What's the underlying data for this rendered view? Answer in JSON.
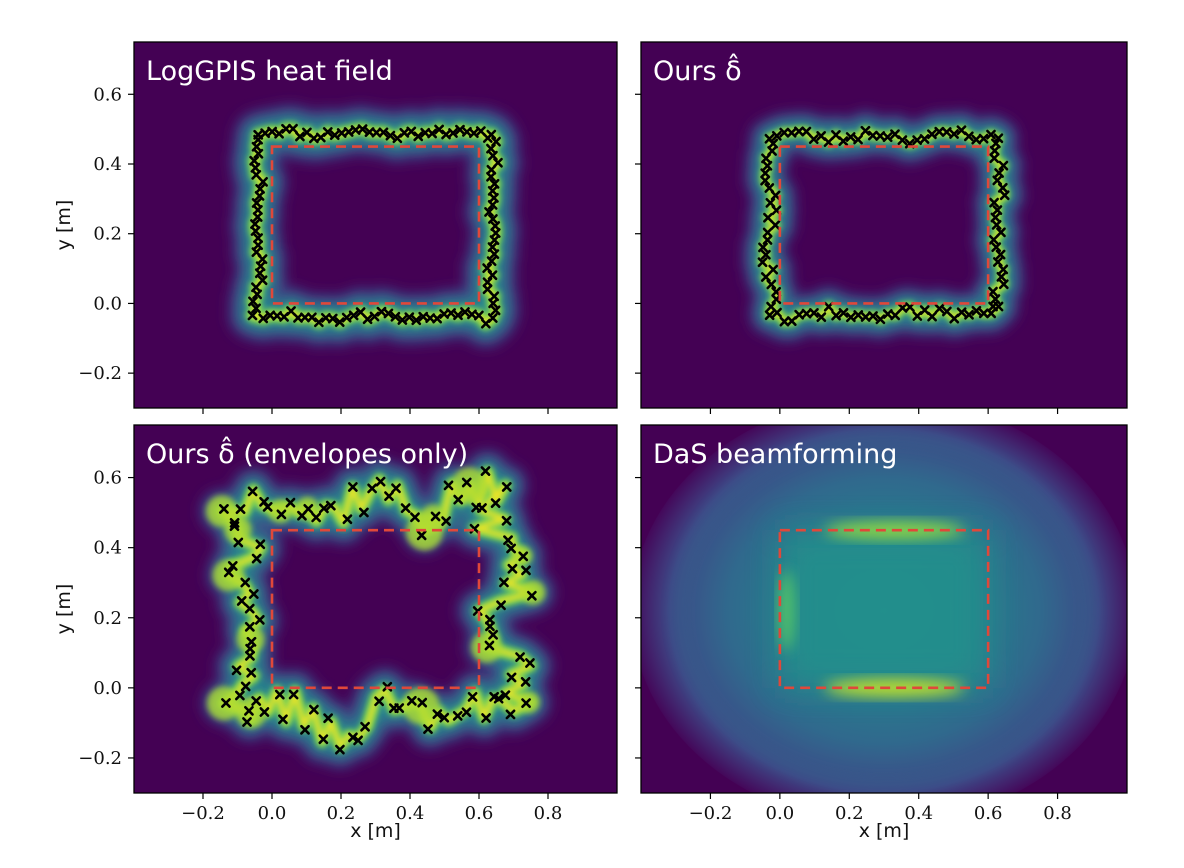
{
  "chart_data": [
    {
      "type": "heatmap",
      "title": "LogGPIS heat field",
      "xlabel": "",
      "ylabel": "y [m]",
      "xlim": [
        -0.4,
        1.0
      ],
      "ylim": [
        -0.3,
        0.75
      ],
      "xticks": [],
      "yticks": [
        "−0.2",
        "0.0",
        "0.2",
        "0.4",
        "0.6"
      ],
      "rect_outline": {
        "x": [
          0.0,
          0.6
        ],
        "y": [
          0.0,
          0.45
        ],
        "style": "red dashed"
      },
      "field": {
        "style": "sharp",
        "pad": 0.04,
        "jitter": 0.012,
        "glow": 0.055,
        "count": 120,
        "seed": 11
      },
      "markers": "black x on contour"
    },
    {
      "type": "heatmap",
      "title": "Ours δ̂",
      "xlabel": "",
      "ylabel": "",
      "xlim": [
        -0.4,
        1.0
      ],
      "ylim": [
        -0.3,
        0.75
      ],
      "xticks": [],
      "yticks": [],
      "rect_outline": {
        "x": [
          0.0,
          0.6
        ],
        "y": [
          0.0,
          0.45
        ],
        "style": "red dashed"
      },
      "field": {
        "style": "wavy",
        "pad": 0.03,
        "jitter": 0.015,
        "glow": 0.045,
        "count": 110,
        "seed": 23
      },
      "markers": "black x on contour"
    },
    {
      "type": "heatmap",
      "title": "Ours δ̂ (envelopes only)",
      "xlabel": "x [m]",
      "ylabel": "y [m]",
      "xlim": [
        -0.4,
        1.0
      ],
      "ylim": [
        -0.3,
        0.75
      ],
      "xticks": [
        "−0.2",
        "0.0",
        "0.2",
        "0.4",
        "0.6",
        "0.8"
      ],
      "yticks": [
        "−0.2",
        "0.0",
        "0.2",
        "0.4",
        "0.6"
      ],
      "rect_outline": {
        "x": [
          0.0,
          0.6
        ],
        "y": [
          0.0,
          0.45
        ],
        "style": "red dashed"
      },
      "field": {
        "style": "scatter",
        "pad": 0.08,
        "jitter": 0.06,
        "glow": 0.05,
        "count": 105,
        "seed": 37
      },
      "markers": "black x scattered around contour"
    },
    {
      "type": "heatmap",
      "title": "DaS beamforming",
      "xlabel": "x [m]",
      "ylabel": "",
      "xlim": [
        -0.4,
        1.0
      ],
      "ylim": [
        -0.3,
        0.75
      ],
      "xticks": [
        "−0.2",
        "0.0",
        "0.2",
        "0.4",
        "0.6",
        "0.8"
      ],
      "yticks": [],
      "rect_outline": {
        "x": [
          0.0,
          0.6
        ],
        "y": [
          0.0,
          0.45
        ],
        "style": "red dashed"
      },
      "field": {
        "style": "diffuse",
        "center": [
          0.3,
          0.22
        ]
      },
      "markers": "none"
    }
  ],
  "colors": {
    "background": "#440154",
    "outline": "#e0483a",
    "marker": "#000000",
    "text": "#ffffff",
    "viridis": [
      "#440154",
      "#472d7b",
      "#3b528b",
      "#2c728e",
      "#21918c",
      "#28ae80",
      "#5ec962",
      "#addc30",
      "#fde725"
    ]
  }
}
